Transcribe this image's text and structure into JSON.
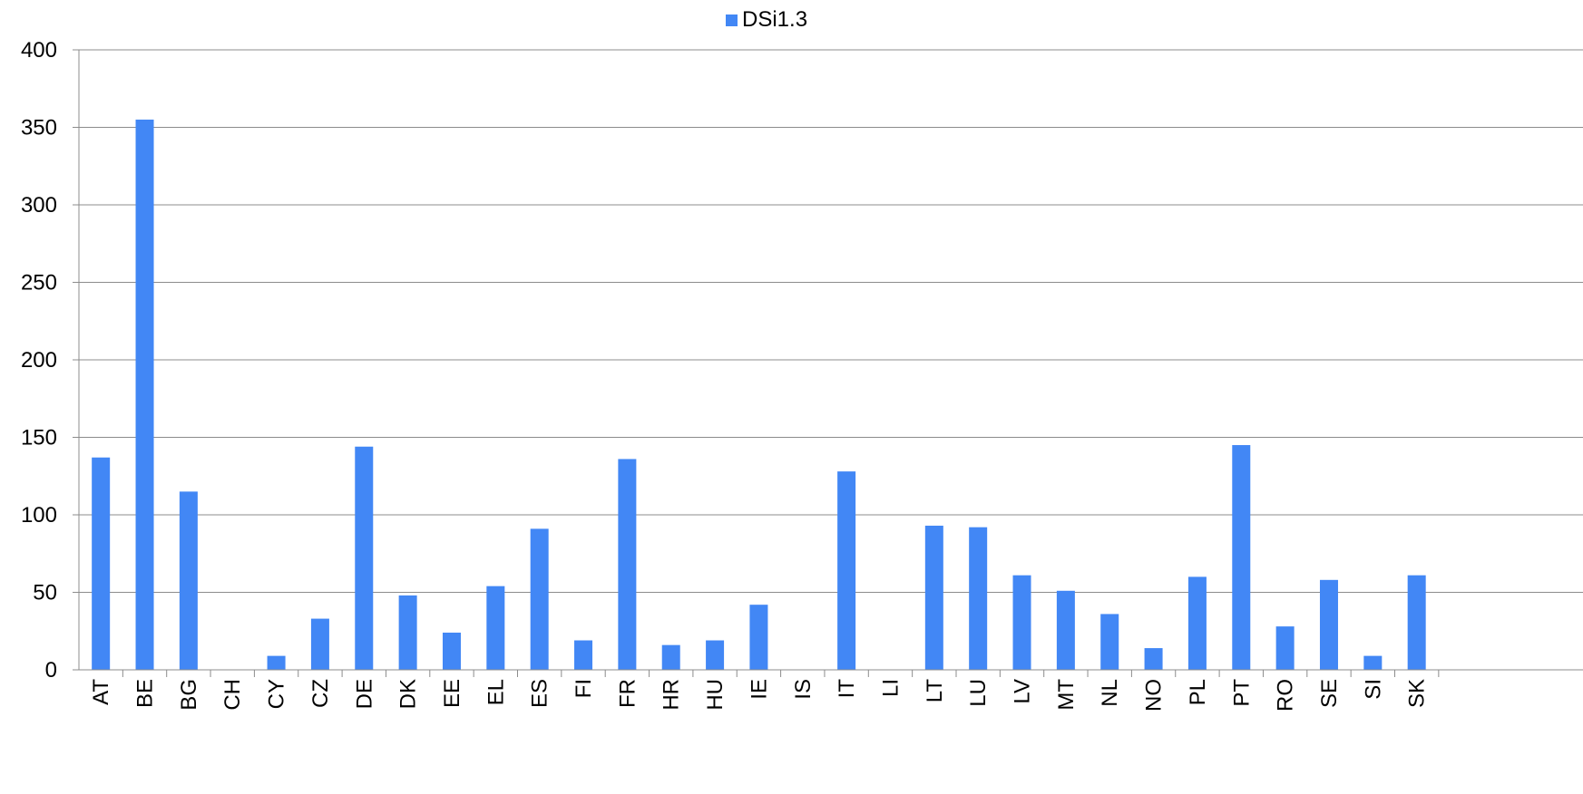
{
  "chart_data": {
    "type": "bar",
    "title": "",
    "xlabel": "",
    "ylabel": "",
    "ylim": [
      0,
      400
    ],
    "yticks": [
      0,
      50,
      100,
      150,
      200,
      250,
      300,
      350,
      400
    ],
    "grid": true,
    "legend_position": "top",
    "categories": [
      "AT",
      "BE",
      "BG",
      "CH",
      "CY",
      "CZ",
      "DE",
      "DK",
      "EE",
      "EL",
      "ES",
      "FI",
      "FR",
      "HR",
      "HU",
      "IE",
      "IS",
      "IT",
      "LI",
      "LT",
      "LU",
      "LV",
      "MT",
      "NL",
      "NO",
      "PL",
      "PT",
      "RO",
      "SE",
      "SI",
      "SK"
    ],
    "series": [
      {
        "name": "DSi1.3",
        "color": "#4287f5",
        "values": [
          137,
          355,
          115,
          0,
          9,
          33,
          144,
          48,
          24,
          54,
          91,
          19,
          136,
          16,
          19,
          42,
          0,
          128,
          0,
          93,
          92,
          61,
          51,
          36,
          14,
          60,
          145,
          28,
          58,
          9,
          61
        ]
      }
    ]
  }
}
